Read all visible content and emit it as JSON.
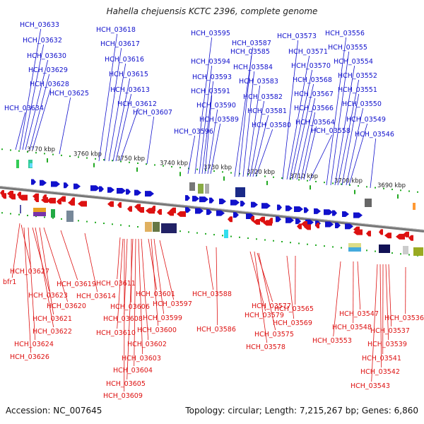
{
  "title": "Hahella chejuensis KCTC 2396, complete genome",
  "footer": {
    "accession": "Accession: NC_007645",
    "summary": "Topology: circular; Length: 7,215,267 bp; Genes: 6,860"
  },
  "scale_labels": [
    "3770 kbp",
    "3760 kbp",
    "3750 kbp",
    "3740 kbp",
    "3730 kbp",
    "3720 kbp",
    "3710 kbp",
    "3700 kbp",
    "3690 kbp"
  ],
  "colors": {
    "forward": "#1111cc",
    "reverse": "#dd1111",
    "backbone": "#777777",
    "ticks": "#22aa22"
  },
  "forward_genes": [
    "HCH_03634",
    "HCH_03633",
    "HCH_03632",
    "HCH_03630",
    "HCH_03629",
    "HCH_03628",
    "HCH_03625",
    "HCH_03618",
    "HCH_03617",
    "HCH_03616",
    "HCH_03615",
    "HCH_03613",
    "HCH_03612",
    "HCH_03607",
    "HCH_03596",
    "HCH_03595",
    "HCH_03594",
    "HCH_03593",
    "HCH_03591",
    "HCH_03590",
    "HCH_03589",
    "HCH_03587",
    "HCH_03585",
    "HCH_03584",
    "HCH_03583",
    "HCH_03582",
    "HCH_03581",
    "HCH_03580",
    "HCH_03573",
    "HCH_03571",
    "HCH_03570",
    "HCH_03568",
    "HCH_03567",
    "HCH_03566",
    "HCH_03564",
    "HCH_03558",
    "HCH_03556",
    "HCH_03555",
    "HCH_03554",
    "HCH_03552",
    "HCH_03551",
    "HCH_03550",
    "HCH_03549",
    "HCH_03546"
  ],
  "reverse_genes": [
    "bfr1",
    "HCH_03627",
    "HCH_03626",
    "HCH_03624",
    "HCH_03623",
    "HCH_03622",
    "HCH_03621",
    "HCH_03620",
    "HCH_03619",
    "HCH_03614",
    "HCH_03611",
    "HCH_03610",
    "HCH_03609",
    "HCH_03608",
    "HCH_03606",
    "HCH_03605",
    "HCH_03604",
    "HCH_03603",
    "HCH_03602",
    "HCH_03601",
    "HCH_03600",
    "HCH_03599",
    "HCH_03597",
    "HCH_03588",
    "HCH_03586",
    "HCH_03579",
    "HCH_03578",
    "HCH_03577",
    "HCH_03575",
    "HCH_03569",
    "HCH_03565",
    "HCH_03553",
    "HCH_03548",
    "HCH_03547",
    "HCH_03543",
    "HCH_03542",
    "HCH_03541",
    "HCH_03539",
    "HCH_03537",
    "HCH_03536"
  ]
}
